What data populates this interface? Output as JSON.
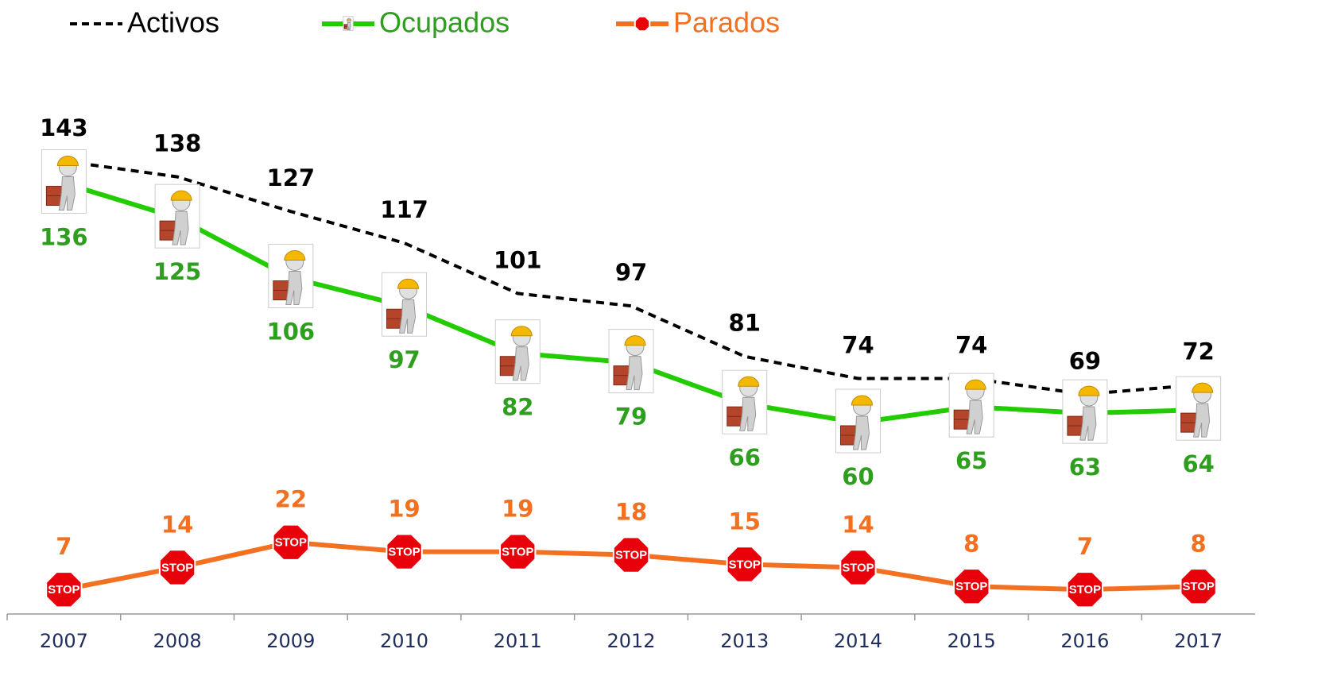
{
  "chart_data": {
    "type": "line",
    "categories": [
      "2007",
      "2008",
      "2009",
      "2010",
      "2011",
      "2012",
      "2013",
      "2014",
      "2015",
      "2016",
      "2017"
    ],
    "series": [
      {
        "name": "Activos",
        "color": "#000000",
        "label_color": "#000000",
        "dashed": true,
        "marker": "none",
        "values": [
          143,
          138,
          127,
          117,
          101,
          97,
          81,
          74,
          74,
          69,
          72
        ]
      },
      {
        "name": "Ocupados",
        "color": "#22cc00",
        "label_color": "#2e9e1e",
        "dashed": false,
        "marker": "worker",
        "values": [
          136,
          125,
          106,
          97,
          82,
          79,
          66,
          60,
          65,
          63,
          64
        ]
      },
      {
        "name": "Parados",
        "color": "#f37021",
        "label_color": "#f37021",
        "dashed": false,
        "marker": "stop",
        "marker_label": "STOP",
        "values": [
          7,
          14,
          22,
          19,
          19,
          18,
          15,
          14,
          8,
          7,
          8
        ]
      }
    ],
    "ylim": [
      0,
      150
    ],
    "axis_label_color": "#1f2d5c"
  }
}
